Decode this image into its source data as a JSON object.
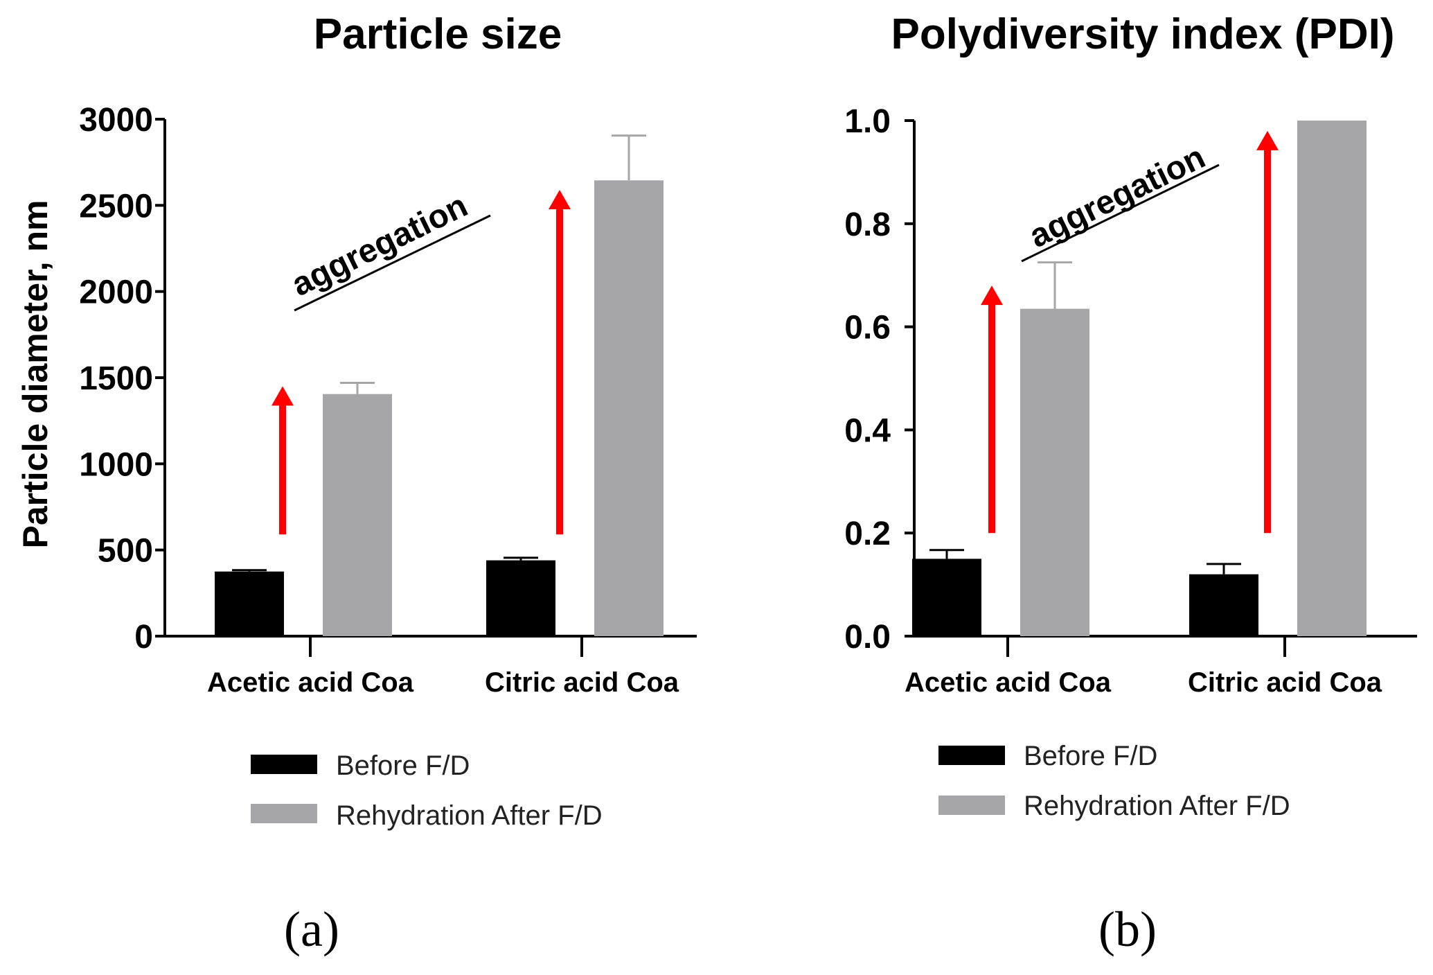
{
  "chart_data": [
    {
      "type": "bar",
      "panel_label": "(a)",
      "title": "Particle size",
      "xlabel": "",
      "ylabel": "Particle diameter, nm",
      "ylim": [
        0,
        3000
      ],
      "yticks": [
        0,
        500,
        1000,
        1500,
        2000,
        2500,
        3000
      ],
      "categories": [
        "Acetic acid Coa",
        "Citric acid Coa"
      ],
      "series": [
        {
          "name": "Before F/D",
          "color": "#000000",
          "values": [
            375,
            440
          ],
          "errors": [
            8,
            15
          ]
        },
        {
          "name": "Rehydration After F/D",
          "color": "#a6a6a8",
          "values": [
            1405,
            2645
          ],
          "errors": [
            65,
            260
          ]
        }
      ],
      "annotation": "aggregation",
      "arrow_color": "#ff0000",
      "arrows": [
        {
          "from": 590,
          "to": 1450
        },
        {
          "from": 590,
          "to": 2590
        }
      ],
      "legend_position": "bottom"
    },
    {
      "type": "bar",
      "panel_label": "(b)",
      "title": "Polydiversity index (PDI)",
      "xlabel": "",
      "ylabel": "",
      "ylim": [
        0,
        1.0
      ],
      "yticks": [
        "0.0",
        "0.2",
        "0.4",
        "0.6",
        "0.8",
        "1.0"
      ],
      "categories": [
        "Acetic acid Coa",
        "Citric acid Coa"
      ],
      "series": [
        {
          "name": "Before F/D",
          "color": "#000000",
          "values": [
            0.15,
            0.12
          ],
          "errors": [
            0.017,
            0.02
          ]
        },
        {
          "name": "Rehydration After F/D",
          "color": "#a6a6a8",
          "values": [
            0.635,
            1.0
          ],
          "errors": [
            0.09,
            0
          ]
        }
      ],
      "annotation": "aggregation",
      "arrow_color": "#ff0000",
      "arrows": [
        {
          "from": 0.2,
          "to": 0.68
        },
        {
          "from": 0.2,
          "to": 0.98
        }
      ],
      "legend_position": "bottom"
    }
  ]
}
